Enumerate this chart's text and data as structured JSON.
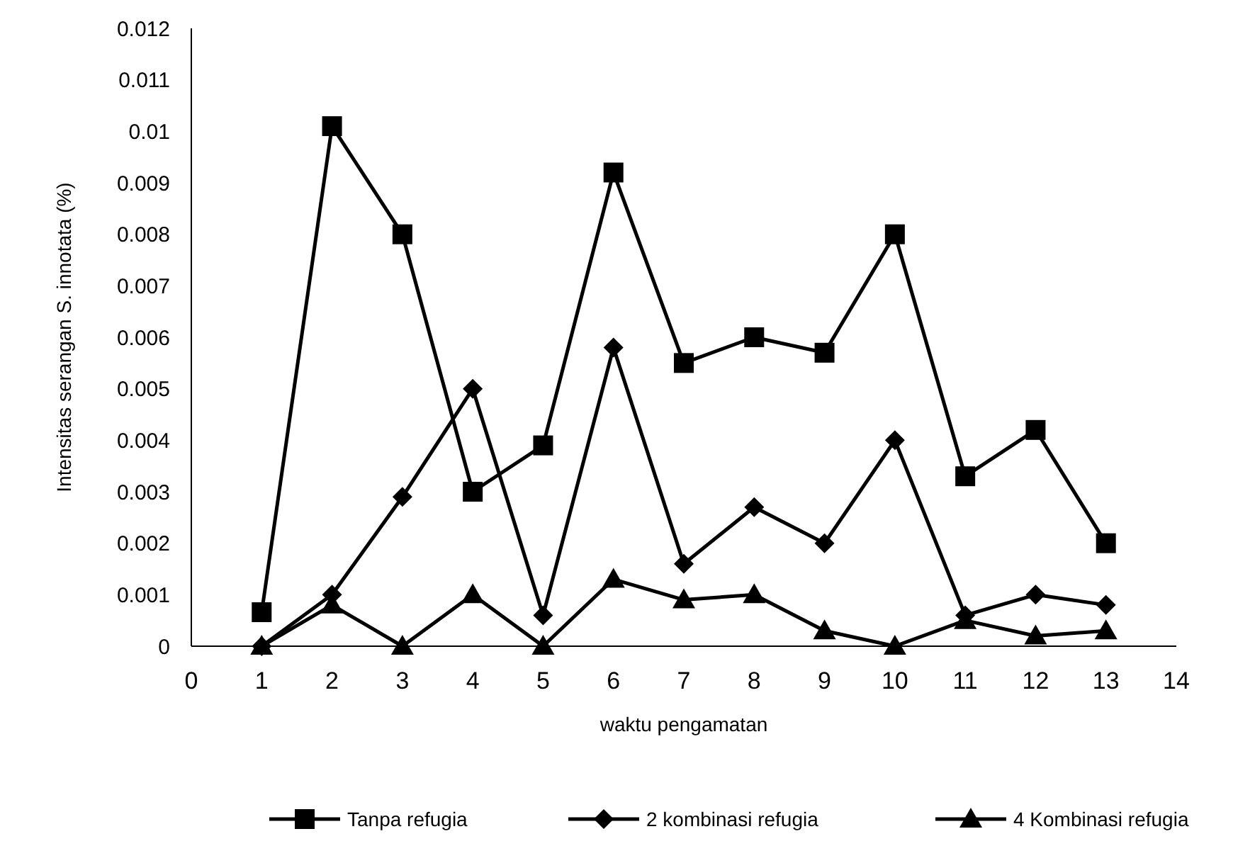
{
  "chart_data": {
    "type": "line",
    "xlabel": "waktu pengamatan",
    "ylabel": "Intensitas serangan S. innotata (%)",
    "x": [
      1,
      2,
      3,
      4,
      5,
      6,
      7,
      8,
      9,
      10,
      11,
      12,
      13
    ],
    "xlim": [
      0,
      14
    ],
    "xticks": [
      0,
      1,
      2,
      3,
      4,
      5,
      6,
      7,
      8,
      9,
      10,
      11,
      12,
      13,
      14
    ],
    "ylim": [
      0,
      0.012
    ],
    "yticks": [
      0,
      0.001,
      0.002,
      0.003,
      0.004,
      0.005,
      0.006,
      0.007,
      0.008,
      0.009,
      0.01,
      0.011,
      0.012
    ],
    "grid": false,
    "legend": "bottom",
    "line_style": "solid",
    "series": [
      {
        "name": "Tanpa refugia",
        "color": "#000000",
        "marker": "square",
        "values": [
          0.00066,
          0.0101,
          0.008,
          0.003,
          0.0039,
          0.0092,
          0.0055,
          0.006,
          0.0057,
          0.008,
          0.0033,
          0.0042,
          0.002
        ]
      },
      {
        "name": "2 kombinasi refugia",
        "color": "#000000",
        "marker": "diamond",
        "values": [
          0,
          0.001,
          0.0029,
          0.005,
          0.0006,
          0.0058,
          0.0016,
          0.0027,
          0.002,
          0.004,
          0.0006,
          0.001,
          0.0008
        ]
      },
      {
        "name": "4 Kombinasi refugia",
        "color": "#000000",
        "marker": "triangle",
        "values": [
          0,
          0.0008,
          0,
          0.001,
          0,
          0.0013,
          0.0009,
          0.001,
          0.0003,
          0,
          0.0005,
          0.0002,
          0.0003
        ]
      }
    ]
  }
}
